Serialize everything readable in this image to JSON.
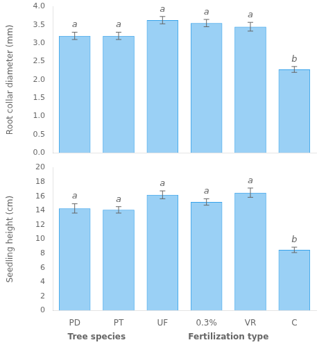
{
  "chart_data": [
    {
      "type": "bar",
      "ylabel": "Root collar diameter (mm)",
      "categories": [
        "PD",
        "PT",
        "UF",
        "0.3%",
        "VR",
        "C"
      ],
      "values": [
        3.2,
        3.2,
        3.63,
        3.55,
        3.45,
        2.28
      ],
      "errors": [
        0.1,
        0.1,
        0.1,
        0.1,
        0.12,
        0.08
      ],
      "ylim": [
        0,
        4.0
      ],
      "yticks": [
        {
          "value": 0,
          "label": "0.0"
        },
        0.5,
        {
          "value": 1,
          "label": "1.0"
        },
        1.5,
        {
          "value": 2,
          "label": "2.0"
        },
        2.5,
        {
          "value": 3,
          "label": "3.0"
        },
        3.5,
        {
          "value": 4,
          "label": "4.0"
        }
      ],
      "grid": false,
      "tick_labels": "y",
      "annotations": [
        {
          "text": "a",
          "category": "PD"
        },
        {
          "text": "a",
          "category": "PT"
        },
        {
          "text": "a",
          "category": "UF"
        },
        {
          "text": "a",
          "category": "0.3%"
        },
        {
          "text": "a",
          "category": "VR"
        },
        {
          "text": "b",
          "category": "C"
        }
      ]
    },
    {
      "type": "bar",
      "ylabel": "Seedling height (cm)",
      "categories": [
        "PD",
        "PT",
        "UF",
        "0.3%",
        "VR",
        "C"
      ],
      "values": [
        14.3,
        14.1,
        16.2,
        15.2,
        16.5,
        8.5
      ],
      "errors": [
        0.65,
        0.45,
        0.55,
        0.45,
        0.65,
        0.38
      ],
      "ylim": [
        0,
        20
      ],
      "yticks": [
        0,
        2,
        4,
        6,
        8,
        10,
        12,
        14,
        16,
        18,
        20
      ],
      "grid": false,
      "annotations": [
        {
          "text": "a",
          "category": "PD"
        },
        {
          "text": "a",
          "category": "PT"
        },
        {
          "text": "a",
          "category": "UF"
        },
        {
          "text": "a",
          "category": "0.3%"
        },
        {
          "text": "a",
          "category": "VR"
        },
        {
          "text": "b",
          "category": "C"
        },
        {
          "text": "Tree species",
          "categories": [
            "PD",
            "PT"
          ]
        },
        {
          "text": "Fertilization type",
          "categories": [
            "UF",
            "0.3%",
            "VR",
            "C"
          ]
        }
      ]
    }
  ]
}
